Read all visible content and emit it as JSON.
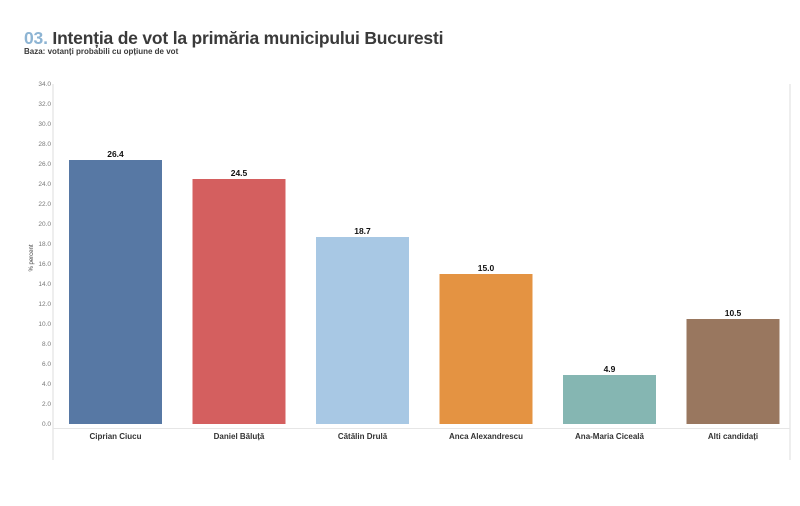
{
  "header": {
    "title_number": "03.",
    "title_text": "Intenția de vot la primăria municipului Bucuresti",
    "subtitle": "Baza: votanți probabili cu opțiune de vot"
  },
  "chart_data": {
    "type": "bar",
    "ylabel": "% percent",
    "xlabel": "",
    "ylim": [
      0,
      34
    ],
    "yticks": [
      "0.0",
      "2.0",
      "4.0",
      "6.0",
      "8.0",
      "10.0",
      "12.0",
      "14.0",
      "16.0",
      "18.0",
      "20.0",
      "22.0",
      "24.0",
      "26.0",
      "28.0",
      "30.0",
      "32.0",
      "34.0"
    ],
    "grid": false,
    "categories": [
      "Ciprian Ciucu",
      "Daniel Băluță",
      "Cătălin Drulă",
      "Anca Alexandrescu",
      "Ana-Maria Ciceală",
      "Alti candidați"
    ],
    "values": [
      26.4,
      24.5,
      18.7,
      15.0,
      4.9,
      10.5
    ],
    "value_labels": [
      "26.4",
      "24.5",
      "18.7",
      "15.0",
      "4.9",
      "10.5"
    ],
    "colors": [
      "#5778a4",
      "#d45f5f",
      "#a8c8e4",
      "#e49342",
      "#85b6b2",
      "#99775f"
    ]
  }
}
